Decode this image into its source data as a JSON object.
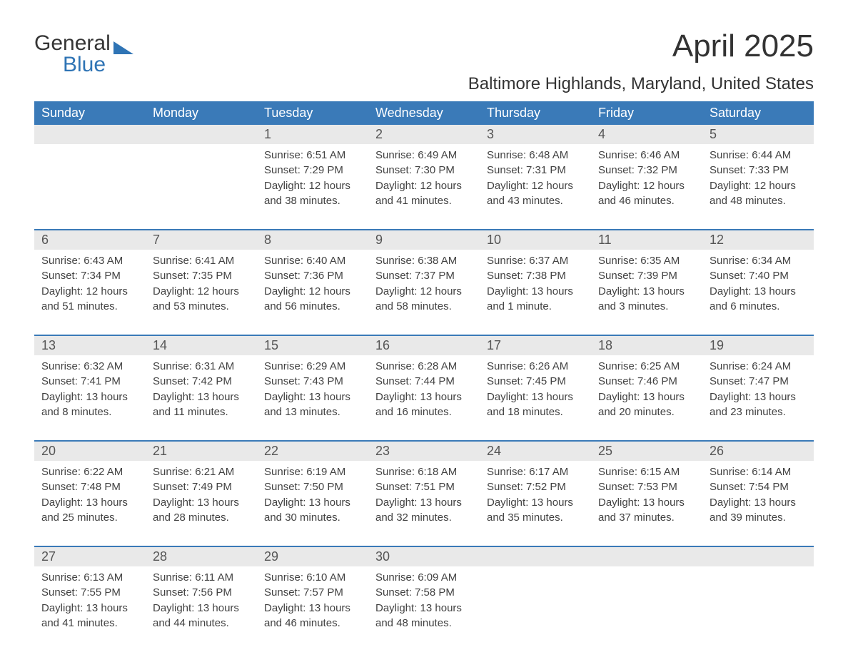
{
  "logo": {
    "line1": "General",
    "line2": "Blue",
    "color_primary": "#2f74b5",
    "color_text": "#353535"
  },
  "title": "April 2025",
  "location": "Baltimore Highlands, Maryland, United States",
  "colors": {
    "header_bg": "#3a7ab8",
    "header_text": "#ffffff",
    "daynum_bg": "#e9e9e9",
    "daynum_text": "#555555",
    "body_text": "#424242",
    "week_border": "#3a7ab8",
    "page_bg": "#ffffff"
  },
  "typography": {
    "month_title_fontsize": 44,
    "location_fontsize": 24,
    "weekday_fontsize": 18,
    "daynum_fontsize": 18,
    "cell_fontsize": 15
  },
  "weekdays": [
    "Sunday",
    "Monday",
    "Tuesday",
    "Wednesday",
    "Thursday",
    "Friday",
    "Saturday"
  ],
  "weeks": [
    [
      null,
      null,
      {
        "day": "1",
        "sunrise": "Sunrise: 6:51 AM",
        "sunset": "Sunset: 7:29 PM",
        "daylight1": "Daylight: 12 hours",
        "daylight2": "and 38 minutes."
      },
      {
        "day": "2",
        "sunrise": "Sunrise: 6:49 AM",
        "sunset": "Sunset: 7:30 PM",
        "daylight1": "Daylight: 12 hours",
        "daylight2": "and 41 minutes."
      },
      {
        "day": "3",
        "sunrise": "Sunrise: 6:48 AM",
        "sunset": "Sunset: 7:31 PM",
        "daylight1": "Daylight: 12 hours",
        "daylight2": "and 43 minutes."
      },
      {
        "day": "4",
        "sunrise": "Sunrise: 6:46 AM",
        "sunset": "Sunset: 7:32 PM",
        "daylight1": "Daylight: 12 hours",
        "daylight2": "and 46 minutes."
      },
      {
        "day": "5",
        "sunrise": "Sunrise: 6:44 AM",
        "sunset": "Sunset: 7:33 PM",
        "daylight1": "Daylight: 12 hours",
        "daylight2": "and 48 minutes."
      }
    ],
    [
      {
        "day": "6",
        "sunrise": "Sunrise: 6:43 AM",
        "sunset": "Sunset: 7:34 PM",
        "daylight1": "Daylight: 12 hours",
        "daylight2": "and 51 minutes."
      },
      {
        "day": "7",
        "sunrise": "Sunrise: 6:41 AM",
        "sunset": "Sunset: 7:35 PM",
        "daylight1": "Daylight: 12 hours",
        "daylight2": "and 53 minutes."
      },
      {
        "day": "8",
        "sunrise": "Sunrise: 6:40 AM",
        "sunset": "Sunset: 7:36 PM",
        "daylight1": "Daylight: 12 hours",
        "daylight2": "and 56 minutes."
      },
      {
        "day": "9",
        "sunrise": "Sunrise: 6:38 AM",
        "sunset": "Sunset: 7:37 PM",
        "daylight1": "Daylight: 12 hours",
        "daylight2": "and 58 minutes."
      },
      {
        "day": "10",
        "sunrise": "Sunrise: 6:37 AM",
        "sunset": "Sunset: 7:38 PM",
        "daylight1": "Daylight: 13 hours",
        "daylight2": "and 1 minute."
      },
      {
        "day": "11",
        "sunrise": "Sunrise: 6:35 AM",
        "sunset": "Sunset: 7:39 PM",
        "daylight1": "Daylight: 13 hours",
        "daylight2": "and 3 minutes."
      },
      {
        "day": "12",
        "sunrise": "Sunrise: 6:34 AM",
        "sunset": "Sunset: 7:40 PM",
        "daylight1": "Daylight: 13 hours",
        "daylight2": "and 6 minutes."
      }
    ],
    [
      {
        "day": "13",
        "sunrise": "Sunrise: 6:32 AM",
        "sunset": "Sunset: 7:41 PM",
        "daylight1": "Daylight: 13 hours",
        "daylight2": "and 8 minutes."
      },
      {
        "day": "14",
        "sunrise": "Sunrise: 6:31 AM",
        "sunset": "Sunset: 7:42 PM",
        "daylight1": "Daylight: 13 hours",
        "daylight2": "and 11 minutes."
      },
      {
        "day": "15",
        "sunrise": "Sunrise: 6:29 AM",
        "sunset": "Sunset: 7:43 PM",
        "daylight1": "Daylight: 13 hours",
        "daylight2": "and 13 minutes."
      },
      {
        "day": "16",
        "sunrise": "Sunrise: 6:28 AM",
        "sunset": "Sunset: 7:44 PM",
        "daylight1": "Daylight: 13 hours",
        "daylight2": "and 16 minutes."
      },
      {
        "day": "17",
        "sunrise": "Sunrise: 6:26 AM",
        "sunset": "Sunset: 7:45 PM",
        "daylight1": "Daylight: 13 hours",
        "daylight2": "and 18 minutes."
      },
      {
        "day": "18",
        "sunrise": "Sunrise: 6:25 AM",
        "sunset": "Sunset: 7:46 PM",
        "daylight1": "Daylight: 13 hours",
        "daylight2": "and 20 minutes."
      },
      {
        "day": "19",
        "sunrise": "Sunrise: 6:24 AM",
        "sunset": "Sunset: 7:47 PM",
        "daylight1": "Daylight: 13 hours",
        "daylight2": "and 23 minutes."
      }
    ],
    [
      {
        "day": "20",
        "sunrise": "Sunrise: 6:22 AM",
        "sunset": "Sunset: 7:48 PM",
        "daylight1": "Daylight: 13 hours",
        "daylight2": "and 25 minutes."
      },
      {
        "day": "21",
        "sunrise": "Sunrise: 6:21 AM",
        "sunset": "Sunset: 7:49 PM",
        "daylight1": "Daylight: 13 hours",
        "daylight2": "and 28 minutes."
      },
      {
        "day": "22",
        "sunrise": "Sunrise: 6:19 AM",
        "sunset": "Sunset: 7:50 PM",
        "daylight1": "Daylight: 13 hours",
        "daylight2": "and 30 minutes."
      },
      {
        "day": "23",
        "sunrise": "Sunrise: 6:18 AM",
        "sunset": "Sunset: 7:51 PM",
        "daylight1": "Daylight: 13 hours",
        "daylight2": "and 32 minutes."
      },
      {
        "day": "24",
        "sunrise": "Sunrise: 6:17 AM",
        "sunset": "Sunset: 7:52 PM",
        "daylight1": "Daylight: 13 hours",
        "daylight2": "and 35 minutes."
      },
      {
        "day": "25",
        "sunrise": "Sunrise: 6:15 AM",
        "sunset": "Sunset: 7:53 PM",
        "daylight1": "Daylight: 13 hours",
        "daylight2": "and 37 minutes."
      },
      {
        "day": "26",
        "sunrise": "Sunrise: 6:14 AM",
        "sunset": "Sunset: 7:54 PM",
        "daylight1": "Daylight: 13 hours",
        "daylight2": "and 39 minutes."
      }
    ],
    [
      {
        "day": "27",
        "sunrise": "Sunrise: 6:13 AM",
        "sunset": "Sunset: 7:55 PM",
        "daylight1": "Daylight: 13 hours",
        "daylight2": "and 41 minutes."
      },
      {
        "day": "28",
        "sunrise": "Sunrise: 6:11 AM",
        "sunset": "Sunset: 7:56 PM",
        "daylight1": "Daylight: 13 hours",
        "daylight2": "and 44 minutes."
      },
      {
        "day": "29",
        "sunrise": "Sunrise: 6:10 AM",
        "sunset": "Sunset: 7:57 PM",
        "daylight1": "Daylight: 13 hours",
        "daylight2": "and 46 minutes."
      },
      {
        "day": "30",
        "sunrise": "Sunrise: 6:09 AM",
        "sunset": "Sunset: 7:58 PM",
        "daylight1": "Daylight: 13 hours",
        "daylight2": "and 48 minutes."
      },
      null,
      null,
      null
    ]
  ]
}
